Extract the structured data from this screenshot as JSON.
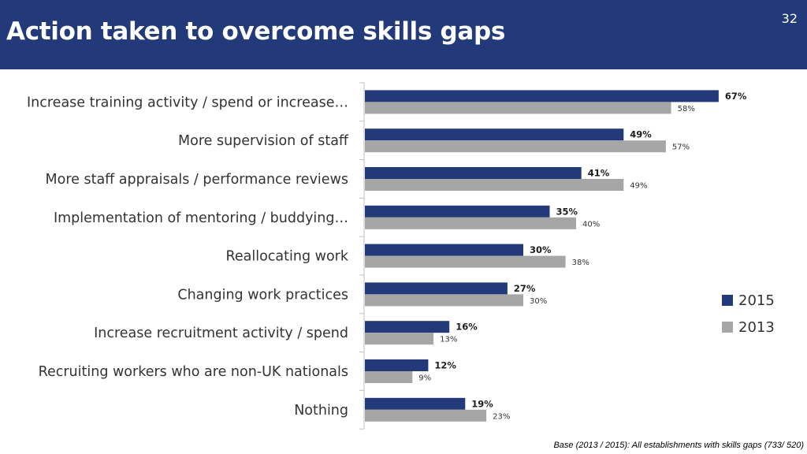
{
  "slide": {
    "title": "Action taken to overcome skills gaps",
    "page_number": "32",
    "footnote": "Base (2013 / 2015): All establishments with skills gaps (733/ 520)"
  },
  "colors": {
    "header_bg": "#233a7a",
    "series_2015": "#233a7a",
    "series_2013": "#a6a6a6"
  },
  "chart_data": {
    "type": "bar",
    "orientation": "horizontal",
    "title": "",
    "xlabel": "",
    "ylabel": "",
    "xlim": [
      0,
      70
    ],
    "grid": false,
    "legend_position": "right",
    "value_suffix": "%",
    "categories": [
      "Increase training activity / spend or increase…",
      "More supervision of staff",
      "More staff appraisals / performance reviews",
      "Implementation of mentoring / buddying…",
      "Reallocating work",
      "Changing work practices",
      "Increase recruitment activity / spend",
      "Recruiting workers who are non-UK nationals",
      "Nothing"
    ],
    "series": [
      {
        "name": "2015",
        "color": "#233a7a",
        "values": [
          67,
          49,
          41,
          35,
          30,
          27,
          16,
          12,
          19
        ]
      },
      {
        "name": "2013",
        "color": "#a6a6a6",
        "values": [
          58,
          57,
          49,
          40,
          38,
          30,
          13,
          9,
          23
        ]
      }
    ]
  }
}
